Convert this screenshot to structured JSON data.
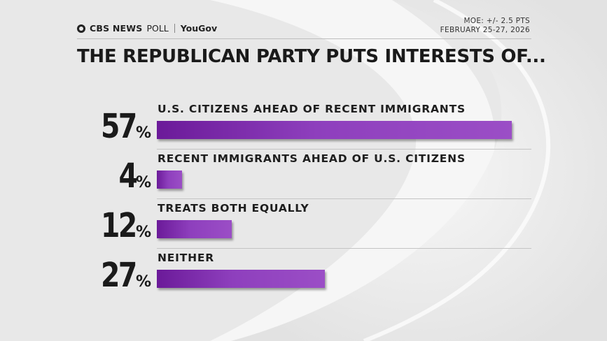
{
  "header": {
    "brand": "CBS NEWS",
    "brand_suffix": "POLL",
    "partner": "YouGov",
    "moe": "MOE: +/- 2.5 PTS",
    "dates": "FEBRUARY 25-27, 2026"
  },
  "chart_data": {
    "type": "bar",
    "orientation": "horizontal",
    "title": "THE REPUBLICAN PARTY PUTS INTERESTS OF...",
    "unit": "%",
    "categories": [
      "U.S. CITIZENS AHEAD OF RECENT IMMIGRANTS",
      "RECENT IMMIGRANTS AHEAD OF U.S. CITIZENS",
      "TREATS BOTH EQUALLY",
      "NEITHER"
    ],
    "values": [
      57,
      4,
      12,
      27
    ],
    "value_labels": [
      "57",
      "4",
      "12",
      "27"
    ],
    "percent_sign": "%",
    "xlim": [
      0,
      57
    ],
    "grid": false,
    "legend": "none"
  },
  "colors": {
    "bar_start": "#6b1a99",
    "bar_end": "#9b4ec6",
    "text": "#1a1a1a"
  }
}
